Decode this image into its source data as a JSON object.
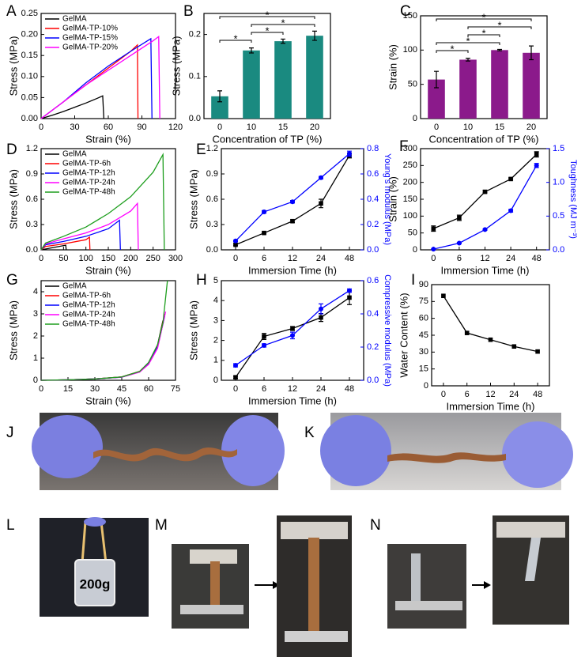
{
  "chart_data": [
    {
      "type": "line",
      "panel": "A",
      "xlabel": "Strain (%)",
      "ylabel": "Stress (MPa)",
      "xlim": [
        0,
        120
      ],
      "xticks": [
        0,
        30,
        60,
        90,
        120
      ],
      "ylim": [
        0,
        0.25
      ],
      "yticks": [
        {
          "value": 0,
          "label": "0.00"
        },
        0.05,
        {
          "value": 0.1,
          "label": "0.10"
        },
        0.15,
        {
          "value": 0.2,
          "label": "0.20"
        },
        0.25
      ],
      "legend": "upper left",
      "series": [
        {
          "name": "GelMA",
          "color": "#000000",
          "x": [
            0,
            10,
            20,
            30,
            40,
            50,
            55,
            56
          ],
          "values": [
            0,
            0.008,
            0.017,
            0.027,
            0.037,
            0.048,
            0.054,
            0
          ]
        },
        {
          "name": "GelMA-TP-10%",
          "color": "#ff0000",
          "x": [
            0,
            20,
            40,
            60,
            80,
            86,
            86.5
          ],
          "values": [
            0,
            0.04,
            0.08,
            0.12,
            0.16,
            0.175,
            0
          ]
        },
        {
          "name": "GelMA-TP-15%",
          "color": "#0000ff",
          "x": [
            0,
            20,
            40,
            60,
            80,
            95,
            98,
            99
          ],
          "values": [
            0,
            0.04,
            0.085,
            0.125,
            0.16,
            0.185,
            0.19,
            0
          ]
        },
        {
          "name": "GelMA-TP-20%",
          "color": "#ff00ff",
          "x": [
            0,
            20,
            40,
            60,
            80,
            100,
            105,
            106
          ],
          "values": [
            0,
            0.04,
            0.08,
            0.115,
            0.15,
            0.185,
            0.195,
            0
          ]
        }
      ]
    },
    {
      "type": "bar",
      "panel": "B",
      "xlabel": "Concentration of TP (%)",
      "ylabel": "Stress (MPa)",
      "categories": [
        "0",
        "10",
        "15",
        "20"
      ],
      "color": "#1a8a80",
      "values": [
        0.053,
        0.162,
        0.184,
        0.197
      ],
      "errors": [
        0.013,
        0.006,
        0.005,
        0.011
      ],
      "ylim": [
        0,
        0.25
      ],
      "yticks": [
        {
          "value": 0,
          "label": "0.0"
        },
        0.1,
        0.2
      ],
      "significance": [
        {
          "from": 0,
          "to": 3,
          "label": "*"
        },
        {
          "from": 1,
          "to": 3,
          "label": "*"
        },
        {
          "from": 1,
          "to": 2,
          "label": "*"
        },
        {
          "from": 0,
          "to": 1,
          "label": "*"
        }
      ]
    },
    {
      "type": "bar",
      "panel": "C",
      "xlabel": "Concentration of TP (%)",
      "ylabel": "Strain (%)",
      "categories": [
        "0",
        "10",
        "15",
        "20"
      ],
      "color": "#8b1a8b",
      "values": [
        57,
        86,
        100,
        96
      ],
      "errors": [
        12,
        2,
        1,
        10
      ],
      "ylim": [
        0,
        150
      ],
      "yticks": [
        0,
        50,
        100,
        150
      ],
      "significance": [
        {
          "from": 0,
          "to": 3,
          "label": "*"
        },
        {
          "from": 1,
          "to": 3,
          "label": "*"
        },
        {
          "from": 1,
          "to": 2,
          "label": "*"
        },
        {
          "from": 0,
          "to": 2,
          "label": "*"
        },
        {
          "from": 0,
          "to": 1,
          "label": "*"
        }
      ]
    },
    {
      "type": "line",
      "panel": "D",
      "xlabel": "Strain (%)",
      "ylabel": "Stress (MPa)",
      "xlim": [
        0,
        300
      ],
      "xticks": [
        0,
        50,
        100,
        150,
        200,
        250,
        300
      ],
      "ylim": [
        0,
        1.2
      ],
      "yticks": [
        {
          "value": 0,
          "label": "0.0"
        },
        0.3,
        0.6,
        0.9,
        1.2
      ],
      "legend": "upper left",
      "series": [
        {
          "name": "GelMA",
          "color": "#000000",
          "x": [
            0,
            20,
            40,
            55,
            56
          ],
          "values": [
            0,
            0.02,
            0.04,
            0.055,
            0
          ]
        },
        {
          "name": "GelMA-TP-6h",
          "color": "#ff0000",
          "x": [
            0,
            10,
            50,
            100,
            108,
            109
          ],
          "values": [
            0,
            0.04,
            0.07,
            0.12,
            0.15,
            0
          ]
        },
        {
          "name": "GelMA-TP-12h",
          "color": "#0000ff",
          "x": [
            0,
            10,
            50,
            100,
            150,
            175,
            177
          ],
          "values": [
            0,
            0.06,
            0.1,
            0.16,
            0.25,
            0.35,
            0
          ]
        },
        {
          "name": "GelMA-TP-24h",
          "color": "#ff00ff",
          "x": [
            0,
            10,
            50,
            100,
            150,
            200,
            215,
            217
          ],
          "values": [
            0,
            0.07,
            0.13,
            0.2,
            0.3,
            0.46,
            0.55,
            0
          ]
        },
        {
          "name": "GelMA-TP-48h",
          "color": "#1e9e1e",
          "x": [
            0,
            10,
            50,
            100,
            150,
            200,
            250,
            272,
            275
          ],
          "values": [
            0,
            0.08,
            0.16,
            0.27,
            0.43,
            0.63,
            0.92,
            1.13,
            0
          ]
        }
      ]
    },
    {
      "type": "line",
      "panel": "E",
      "xlabel": "Immersion Time (h)",
      "ylabel": "Stress (MPa)",
      "y2label": "Young's modulus (MPa)",
      "categories": [
        "0",
        "6",
        "12",
        "24",
        "48"
      ],
      "ylim": [
        0,
        1.2
      ],
      "yticks": [
        {
          "value": 0,
          "label": "0.0"
        },
        0.3,
        0.6,
        0.9,
        1.2
      ],
      "y2lim": [
        0,
        0.8
      ],
      "y2ticks": [
        {
          "value": 0,
          "label": "0.0"
        },
        0.2,
        0.4,
        0.6,
        0.8
      ],
      "series": [
        {
          "color": "#000000",
          "marker": "square",
          "values": [
            0.06,
            0.2,
            0.34,
            0.55,
            1.12
          ],
          "errors": [
            0.01,
            0.01,
            0.015,
            0.05,
            0.03
          ]
        },
        {
          "color": "#0000ff",
          "marker": "circle",
          "axis": "y2",
          "values": [
            0.07,
            0.3,
            0.38,
            0.57,
            0.76
          ],
          "errors": [
            0.005,
            0.01,
            0.01,
            0.01,
            0.02
          ]
        }
      ]
    },
    {
      "type": "line",
      "panel": "F",
      "xlabel": "Immersion Time (h)",
      "ylabel": "Strain (%)",
      "y2label": "Toughness (MJ m⁻³)",
      "categories": [
        "0",
        "6",
        "12",
        "24",
        "48"
      ],
      "ylim": [
        0,
        300
      ],
      "yticks": [
        0,
        50,
        100,
        150,
        200,
        250,
        300
      ],
      "y2lim": [
        0,
        1.5
      ],
      "y2ticks": [
        {
          "value": 0,
          "label": "0.0"
        },
        0.5,
        {
          "value": 1,
          "label": "1.0"
        },
        1.5
      ],
      "series": [
        {
          "color": "#000000",
          "marker": "square",
          "values": [
            63,
            95,
            172,
            210,
            283
          ],
          "errors": [
            8,
            8,
            3,
            3,
            8
          ]
        },
        {
          "color": "#0000ff",
          "marker": "circle",
          "axis": "y2",
          "values": [
            0.01,
            0.1,
            0.3,
            0.58,
            1.25
          ],
          "errors": [
            0.005,
            0.01,
            0.01,
            0.02,
            0.03
          ]
        }
      ]
    },
    {
      "type": "line",
      "panel": "G",
      "xlabel": "Strain (%)",
      "ylabel": "Stress (MPa)",
      "xlim": [
        0,
        75
      ],
      "xticks": [
        0,
        15,
        30,
        45,
        60,
        75
      ],
      "ylim": [
        0,
        4.5
      ],
      "yticks": [
        0,
        1,
        2,
        3,
        4
      ],
      "legend": "upper left",
      "series": [
        {
          "name": "GelMA",
          "color": "#000000",
          "x": [
            0,
            15,
            30,
            45,
            55,
            60,
            65,
            68
          ],
          "values": [
            0,
            0.02,
            0.06,
            0.15,
            0.4,
            0.8,
            1.6,
            2.7
          ]
        },
        {
          "name": "GelMA-TP-6h",
          "color": "#ff0000",
          "x": [
            0,
            15,
            30,
            45,
            55,
            60,
            65,
            69
          ],
          "values": [
            0,
            0.02,
            0.06,
            0.15,
            0.4,
            0.78,
            1.55,
            3.0
          ]
        },
        {
          "name": "GelMA-TP-12h",
          "color": "#0000ff",
          "x": [
            0,
            15,
            30,
            45,
            55,
            60,
            65,
            69
          ],
          "values": [
            0,
            0.02,
            0.06,
            0.14,
            0.38,
            0.75,
            1.5,
            2.9
          ]
        },
        {
          "name": "GelMA-TP-24h",
          "color": "#ff00ff",
          "x": [
            0,
            15,
            30,
            45,
            55,
            60,
            65,
            69.5
          ],
          "values": [
            0,
            0.02,
            0.06,
            0.14,
            0.37,
            0.72,
            1.45,
            3.1
          ]
        },
        {
          "name": "GelMA-TP-48h",
          "color": "#1e9e1e",
          "x": [
            0,
            15,
            30,
            45,
            55,
            60,
            65,
            68,
            70.5
          ],
          "values": [
            0,
            0.02,
            0.06,
            0.15,
            0.4,
            0.8,
            1.6,
            2.6,
            4.5
          ]
        }
      ]
    },
    {
      "type": "line",
      "panel": "H",
      "xlabel": "Immersion Time (h)",
      "ylabel": "Stress (MPa)",
      "y2label": "Compressive modulus (MPa)",
      "categories": [
        "0",
        "6",
        "12",
        "24",
        "48"
      ],
      "ylim": [
        0,
        5
      ],
      "yticks": [
        0,
        1,
        2,
        3,
        4,
        5
      ],
      "y2lim": [
        0,
        0.6
      ],
      "y2ticks": [
        {
          "value": 0,
          "label": "0.0"
        },
        0.2,
        0.4,
        0.6
      ],
      "series": [
        {
          "color": "#000000",
          "marker": "square",
          "values": [
            0.15,
            2.2,
            2.6,
            3.15,
            4.15
          ],
          "errors": [
            0.05,
            0.15,
            0.1,
            0.2,
            0.35
          ]
        },
        {
          "color": "#0000ff",
          "marker": "circle",
          "axis": "y2",
          "values": [
            0.09,
            0.21,
            0.27,
            0.43,
            0.54
          ],
          "errors": [
            0.01,
            0.01,
            0.02,
            0.03,
            0.01
          ]
        }
      ]
    },
    {
      "type": "line",
      "panel": "I",
      "xlabel": "Immersion Time (h)",
      "ylabel": "Water Content (%)",
      "categories": [
        "0",
        "6",
        "12",
        "24",
        "48"
      ],
      "ylim": [
        0,
        90
      ],
      "yticks": [
        0,
        15,
        30,
        45,
        60,
        75,
        90
      ],
      "series": [
        {
          "color": "#000000",
          "marker": "square",
          "values": [
            80,
            47,
            41,
            35,
            30.5
          ]
        }
      ]
    }
  ],
  "photos": [
    {
      "panel": "J"
    },
    {
      "panel": "K"
    },
    {
      "panel": "L",
      "label": "200g"
    },
    {
      "panel": "M"
    },
    {
      "panel": "N"
    }
  ]
}
